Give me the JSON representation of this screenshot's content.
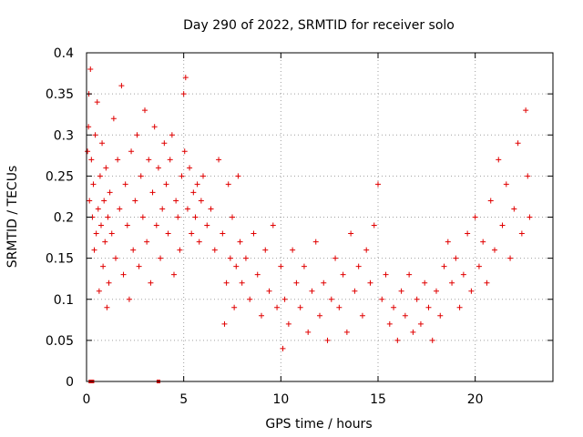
{
  "chart_data": {
    "type": "scatter",
    "title": "Day 290 of 2022, SRMTID for receiver solo",
    "xlabel": "GPS time / hours",
    "ylabel": "SRMTID / TECUs",
    "xlim": [
      0,
      24
    ],
    "ylim": [
      0,
      0.4
    ],
    "x_ticks": [
      0,
      5,
      10,
      15,
      20
    ],
    "x_tick_labels": [
      "0",
      "5",
      "10",
      "15",
      "20"
    ],
    "y_ticks": [
      0,
      0.05,
      0.1,
      0.15,
      0.2,
      0.25,
      0.3,
      0.35,
      0.4
    ],
    "y_tick_labels": [
      "0",
      "0.05",
      "0.1",
      "0.15",
      "0.2",
      "0.25",
      "0.3",
      "0.35",
      "0.4"
    ],
    "grid": true,
    "marker": "+",
    "color": "#e00000",
    "series": [
      {
        "name": "SRMTID",
        "points": [
          [
            0.05,
            0.28
          ],
          [
            0.1,
            0.31
          ],
          [
            0.12,
            0.35
          ],
          [
            0.15,
            0.22
          ],
          [
            0.2,
            0.38
          ],
          [
            0.25,
            0.27
          ],
          [
            0.3,
            0.2
          ],
          [
            0.35,
            0.24
          ],
          [
            0.4,
            0.16
          ],
          [
            0.45,
            0.3
          ],
          [
            0.5,
            0.18
          ],
          [
            0.55,
            0.34
          ],
          [
            0.6,
            0.21
          ],
          [
            0.65,
            0.11
          ],
          [
            0.7,
            0.25
          ],
          [
            0.75,
            0.19
          ],
          [
            0.8,
            0.29
          ],
          [
            0.85,
            0.14
          ],
          [
            0.9,
            0.22
          ],
          [
            0.95,
            0.17
          ],
          [
            1.0,
            0.26
          ],
          [
            1.05,
            0.09
          ],
          [
            1.1,
            0.2
          ],
          [
            1.15,
            0.12
          ],
          [
            1.2,
            0.23
          ],
          [
            1.3,
            0.18
          ],
          [
            1.4,
            0.32
          ],
          [
            1.5,
            0.15
          ],
          [
            1.6,
            0.27
          ],
          [
            1.7,
            0.21
          ],
          [
            1.8,
            0.36
          ],
          [
            1.9,
            0.13
          ],
          [
            2.0,
            0.24
          ],
          [
            2.1,
            0.19
          ],
          [
            2.2,
            0.1
          ],
          [
            2.3,
            0.28
          ],
          [
            2.4,
            0.16
          ],
          [
            2.5,
            0.22
          ],
          [
            2.6,
            0.3
          ],
          [
            2.7,
            0.14
          ],
          [
            2.8,
            0.25
          ],
          [
            2.9,
            0.2
          ],
          [
            3.0,
            0.33
          ],
          [
            3.1,
            0.17
          ],
          [
            3.2,
            0.27
          ],
          [
            3.3,
            0.12
          ],
          [
            3.4,
            0.23
          ],
          [
            3.5,
            0.31
          ],
          [
            3.6,
            0.19
          ],
          [
            3.7,
            0.26
          ],
          [
            3.8,
            0.15
          ],
          [
            3.9,
            0.21
          ],
          [
            4.0,
            0.29
          ],
          [
            4.1,
            0.24
          ],
          [
            4.2,
            0.18
          ],
          [
            4.3,
            0.27
          ],
          [
            4.4,
            0.3
          ],
          [
            4.5,
            0.13
          ],
          [
            4.6,
            0.22
          ],
          [
            4.7,
            0.2
          ],
          [
            4.8,
            0.16
          ],
          [
            4.9,
            0.25
          ],
          [
            5.0,
            0.35
          ],
          [
            5.05,
            0.28
          ],
          [
            5.1,
            0.37
          ],
          [
            5.2,
            0.21
          ],
          [
            5.3,
            0.26
          ],
          [
            5.4,
            0.18
          ],
          [
            5.5,
            0.23
          ],
          [
            5.6,
            0.2
          ],
          [
            5.7,
            0.24
          ],
          [
            5.8,
            0.17
          ],
          [
            5.9,
            0.22
          ],
          [
            6.0,
            0.25
          ],
          [
            6.2,
            0.19
          ],
          [
            6.4,
            0.21
          ],
          [
            6.6,
            0.16
          ],
          [
            6.8,
            0.27
          ],
          [
            7.0,
            0.18
          ],
          [
            7.1,
            0.07
          ],
          [
            7.2,
            0.12
          ],
          [
            7.3,
            0.24
          ],
          [
            7.4,
            0.15
          ],
          [
            7.5,
            0.2
          ],
          [
            7.6,
            0.09
          ],
          [
            7.7,
            0.14
          ],
          [
            7.8,
            0.25
          ],
          [
            7.9,
            0.17
          ],
          [
            8.0,
            0.12
          ],
          [
            8.2,
            0.15
          ],
          [
            8.4,
            0.1
          ],
          [
            8.6,
            0.18
          ],
          [
            8.8,
            0.13
          ],
          [
            9.0,
            0.08
          ],
          [
            9.2,
            0.16
          ],
          [
            9.4,
            0.11
          ],
          [
            9.6,
            0.19
          ],
          [
            9.8,
            0.09
          ],
          [
            10.0,
            0.14
          ],
          [
            10.1,
            0.04
          ],
          [
            10.2,
            0.1
          ],
          [
            10.4,
            0.07
          ],
          [
            10.6,
            0.16
          ],
          [
            10.8,
            0.12
          ],
          [
            11.0,
            0.09
          ],
          [
            11.2,
            0.14
          ],
          [
            11.4,
            0.06
          ],
          [
            11.6,
            0.11
          ],
          [
            11.8,
            0.17
          ],
          [
            12.0,
            0.08
          ],
          [
            12.2,
            0.12
          ],
          [
            12.4,
            0.05
          ],
          [
            12.6,
            0.1
          ],
          [
            12.8,
            0.15
          ],
          [
            13.0,
            0.09
          ],
          [
            13.2,
            0.13
          ],
          [
            13.4,
            0.06
          ],
          [
            13.6,
            0.18
          ],
          [
            13.8,
            0.11
          ],
          [
            14.0,
            0.14
          ],
          [
            14.2,
            0.08
          ],
          [
            14.4,
            0.16
          ],
          [
            14.6,
            0.12
          ],
          [
            14.8,
            0.19
          ],
          [
            15.0,
            0.24
          ],
          [
            15.2,
            0.1
          ],
          [
            15.4,
            0.13
          ],
          [
            15.6,
            0.07
          ],
          [
            15.8,
            0.09
          ],
          [
            16.0,
            0.05
          ],
          [
            16.2,
            0.11
          ],
          [
            16.4,
            0.08
          ],
          [
            16.6,
            0.13
          ],
          [
            16.8,
            0.06
          ],
          [
            17.0,
            0.1
          ],
          [
            17.2,
            0.07
          ],
          [
            17.4,
            0.12
          ],
          [
            17.6,
            0.09
          ],
          [
            17.8,
            0.05
          ],
          [
            18.0,
            0.11
          ],
          [
            18.2,
            0.08
          ],
          [
            18.4,
            0.14
          ],
          [
            18.6,
            0.17
          ],
          [
            18.8,
            0.12
          ],
          [
            19.0,
            0.15
          ],
          [
            19.2,
            0.09
          ],
          [
            19.4,
            0.13
          ],
          [
            19.6,
            0.18
          ],
          [
            19.8,
            0.11
          ],
          [
            20.0,
            0.2
          ],
          [
            20.2,
            0.14
          ],
          [
            20.4,
            0.17
          ],
          [
            20.6,
            0.12
          ],
          [
            20.8,
            0.22
          ],
          [
            21.0,
            0.16
          ],
          [
            21.2,
            0.27
          ],
          [
            21.4,
            0.19
          ],
          [
            21.6,
            0.24
          ],
          [
            21.8,
            0.15
          ],
          [
            22.0,
            0.21
          ],
          [
            22.2,
            0.29
          ],
          [
            22.4,
            0.18
          ],
          [
            22.6,
            0.33
          ],
          [
            22.7,
            0.25
          ],
          [
            22.8,
            0.2
          ]
        ]
      }
    ],
    "special_points": [
      [
        0.2,
        0.0
      ],
      [
        0.3,
        0.0
      ],
      [
        3.7,
        0.0
      ]
    ]
  }
}
